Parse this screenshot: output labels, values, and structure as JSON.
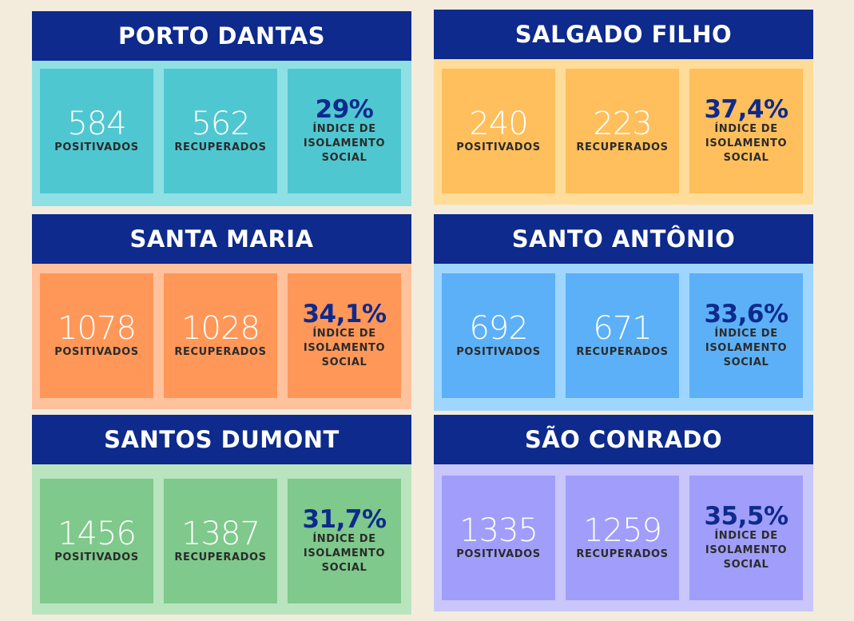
{
  "labels": {
    "positivos": "POSITIVADOS",
    "recuperados": "RECUPERADOS",
    "indice_line1": "ÍNDICE DE",
    "indice_line2": "ISOLAMENTO",
    "indice_line3": "SOCIAL"
  },
  "districts": [
    {
      "name": "PORTO DANTAS",
      "positivos": "584",
      "recuperados": "562",
      "isolamento": "29%",
      "panel_bg": "#8fe0e4",
      "box_bg": "#4fc7d1"
    },
    {
      "name": "SALGADO FILHO",
      "positivos": "240",
      "recuperados": "223",
      "isolamento": "37,4%",
      "panel_bg": "#ffdc99",
      "box_bg": "#ffbf5c"
    },
    {
      "name": "SANTA MARIA",
      "positivos": "1078",
      "recuperados": "1028",
      "isolamento": "34,1%",
      "panel_bg": "#ffc29c",
      "box_bg": "#ff9758"
    },
    {
      "name": "SANTO ANTÔNIO",
      "positivos": "692",
      "recuperados": "671",
      "isolamento": "33,6%",
      "panel_bg": "#9fd6ff",
      "box_bg": "#5cb0f7"
    },
    {
      "name": "SANTOS DUMONT",
      "positivos": "1456",
      "recuperados": "1387",
      "isolamento": "31,7%",
      "panel_bg": "#b9e4be",
      "box_bg": "#7ec98b"
    },
    {
      "name": "SÃO CONRADO",
      "positivos": "1335",
      "recuperados": "1259",
      "isolamento": "35,5%",
      "panel_bg": "#c8c6fb",
      "box_bg": "#a09efa"
    }
  ]
}
